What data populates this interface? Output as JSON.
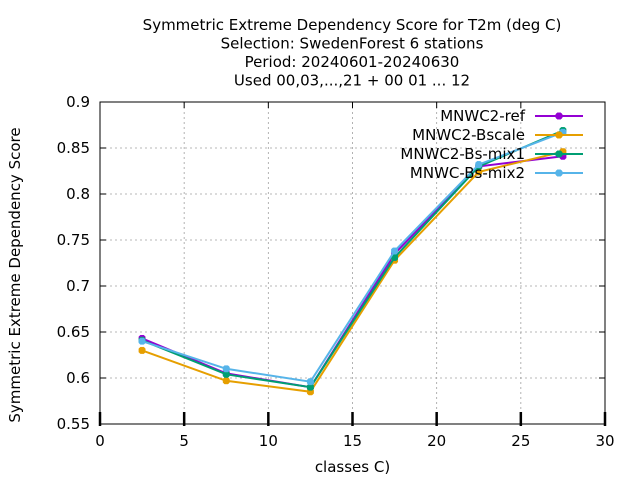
{
  "chart_data": {
    "type": "line",
    "title_lines": [
      "Symmetric Extreme Dependency Score  for T2m (deg C)",
      "Selection: SwedenForest      6 stations",
      "Period: 20240601-20240630",
      "Used 00,03,...,21 + 00 01 ... 12"
    ],
    "xlabel": "classes C)",
    "ylabel": "Symmetric Extreme Dependency Score",
    "xlim": [
      0,
      30
    ],
    "ylim": [
      0.55,
      0.9
    ],
    "xticks": [
      0,
      5,
      10,
      15,
      20,
      25,
      30
    ],
    "yticks": [
      0.55,
      0.6,
      0.65,
      0.7,
      0.75,
      0.8,
      0.85,
      0.9
    ],
    "xtick_labels": [
      "0",
      "5",
      "10",
      "15",
      "20",
      "25",
      "30"
    ],
    "ytick_labels": [
      "0.55",
      "0.6",
      "0.65",
      "0.7",
      "0.75",
      "0.8",
      "0.85",
      "0.9"
    ],
    "grid": true,
    "legend_position": "top-right",
    "x": [
      2.5,
      7.5,
      12.5,
      17.5,
      22.5,
      27.5
    ],
    "series": [
      {
        "name": "MNWC2-ref",
        "color": "#9400d3",
        "values": [
          0.643,
          0.605,
          0.59,
          0.735,
          0.83,
          0.841
        ]
      },
      {
        "name": "MNWC2-Bscale",
        "color": "#e69f00",
        "values": [
          0.63,
          0.597,
          0.585,
          0.728,
          0.824,
          0.846
        ]
      },
      {
        "name": "MNWC2-Bs-mix1",
        "color": "#009e73",
        "values": [
          0.641,
          0.604,
          0.59,
          0.731,
          0.83,
          0.869
        ]
      },
      {
        "name": "MNWC-Bs-mix2",
        "color": "#56b4e9",
        "values": [
          0.64,
          0.61,
          0.596,
          0.738,
          0.832,
          0.867
        ]
      }
    ],
    "bottom_marks_x": [
      0,
      5,
      10,
      15,
      20,
      25,
      30
    ]
  }
}
